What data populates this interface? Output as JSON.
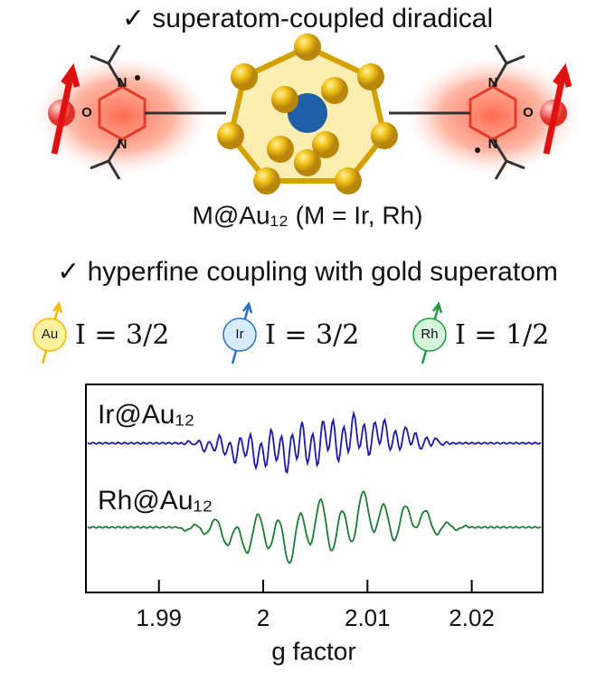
{
  "header": {
    "title": "✓ superatom-coupled diradical",
    "molecule_label": "M@Au₁₂ (M = Ir, Rh)",
    "subtitle": "✓ hyperfine coupling with gold superatom"
  },
  "molecule": {
    "left_atoms": [
      "N",
      "N",
      "O"
    ],
    "right_atoms": [
      "N",
      "N",
      "O"
    ]
  },
  "spins": [
    {
      "element": "Au",
      "spin": "I = 3/2"
    },
    {
      "element": "Ir",
      "spin": "I = 3/2"
    },
    {
      "element": "Rh",
      "spin": "I = 1/2"
    }
  ],
  "chart_data": {
    "type": "line",
    "xlabel": "g factor",
    "xlim": [
      1.983,
      2.0268
    ],
    "xticks": [
      1.99,
      2.0,
      2.01,
      2.02
    ],
    "series": [
      {
        "name": "Ir@Au₁₂",
        "color": "#1a1aa8"
      },
      {
        "name": "Rh@Au₁₂",
        "color": "#1e7b32"
      }
    ]
  }
}
